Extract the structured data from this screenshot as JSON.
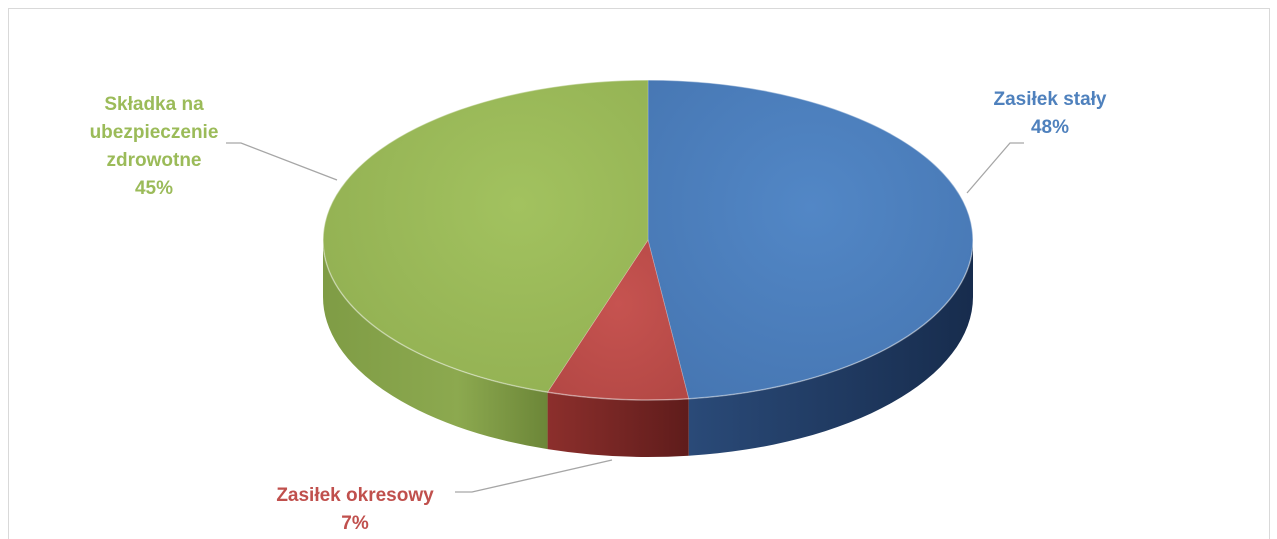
{
  "chart_data": {
    "type": "pie",
    "title": "",
    "slices": [
      {
        "name": "Zasiłek stały",
        "value": 48,
        "label": "48%",
        "color": "#4f81bd"
      },
      {
        "name": "Zasiłek okresowy",
        "value": 7,
        "label": "7%",
        "color": "#c0504d"
      },
      {
        "name": "Składka na ubezpieczenie zdrowotne",
        "value": 45,
        "label": "45%",
        "color": "#9bbb59"
      }
    ],
    "label_lines": {
      "stały": [
        "Zasiłek stały"
      ],
      "okresowy": [
        "Zasiłek okresowy"
      ],
      "skladka": [
        "Składka na",
        "ubezpieczenie",
        "zdrowotne"
      ]
    },
    "legend": "none",
    "style": "3d"
  }
}
